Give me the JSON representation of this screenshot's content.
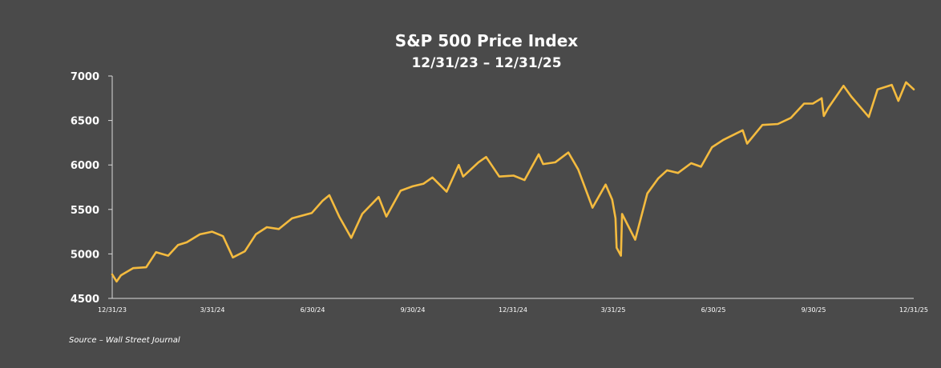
{
  "chart_data": {
    "type": "line",
    "title": "S&P 500 Price Index",
    "subtitle": "12/31/23 – 12/31/25",
    "xlabel": "",
    "ylabel": "",
    "ylim": [
      4500,
      7000
    ],
    "yticks": [
      "7000",
      "6500",
      "6000",
      "5500",
      "5000",
      "4500"
    ],
    "xticks": [
      "12/31/23",
      "3/31/24",
      "6/30/24",
      "9/30/24",
      "12/31/24",
      "3/31/25",
      "6/30/25",
      "9/30/25",
      "12/31/25"
    ],
    "xrange": [
      "2023-12-31",
      "2025-12-31"
    ],
    "line_color": "#f4bb3f",
    "grid": false,
    "series": [
      {
        "points": [
          [
            "2023-12-31",
            4770
          ],
          [
            "2024-01-04",
            4690
          ],
          [
            "2024-01-08",
            4760
          ],
          [
            "2024-01-19",
            4840
          ],
          [
            "2024-01-31",
            4850
          ],
          [
            "2024-02-09",
            5020
          ],
          [
            "2024-02-20",
            4980
          ],
          [
            "2024-02-29",
            5100
          ],
          [
            "2024-03-08",
            5130
          ],
          [
            "2024-03-20",
            5220
          ],
          [
            "2024-03-31",
            5250
          ],
          [
            "2024-04-10",
            5200
          ],
          [
            "2024-04-19",
            4960
          ],
          [
            "2024-04-30",
            5030
          ],
          [
            "2024-05-10",
            5220
          ],
          [
            "2024-05-20",
            5300
          ],
          [
            "2024-05-31",
            5280
          ],
          [
            "2024-06-12",
            5400
          ],
          [
            "2024-06-30",
            5460
          ],
          [
            "2024-07-10",
            5600
          ],
          [
            "2024-07-16",
            5660
          ],
          [
            "2024-07-25",
            5420
          ],
          [
            "2024-08-05",
            5180
          ],
          [
            "2024-08-15",
            5450
          ],
          [
            "2024-08-30",
            5640
          ],
          [
            "2024-09-06",
            5420
          ],
          [
            "2024-09-19",
            5710
          ],
          [
            "2024-09-30",
            5760
          ],
          [
            "2024-10-10",
            5790
          ],
          [
            "2024-10-18",
            5860
          ],
          [
            "2024-10-31",
            5700
          ],
          [
            "2024-11-11",
            6000
          ],
          [
            "2024-11-15",
            5870
          ],
          [
            "2024-11-29",
            6030
          ],
          [
            "2024-12-06",
            6090
          ],
          [
            "2024-12-18",
            5870
          ],
          [
            "2024-12-31",
            5880
          ],
          [
            "2025-01-10",
            5830
          ],
          [
            "2025-01-23",
            6120
          ],
          [
            "2025-01-27",
            6010
          ],
          [
            "2025-02-07",
            6030
          ],
          [
            "2025-02-19",
            6140
          ],
          [
            "2025-02-28",
            5950
          ],
          [
            "2025-03-10",
            5620
          ],
          [
            "2025-03-13",
            5520
          ],
          [
            "2025-03-25",
            5780
          ],
          [
            "2025-03-31",
            5610
          ],
          [
            "2025-04-03",
            5400
          ],
          [
            "2025-04-04",
            5070
          ],
          [
            "2025-04-08",
            4980
          ],
          [
            "2025-04-09",
            5450
          ],
          [
            "2025-04-21",
            5160
          ],
          [
            "2025-05-02",
            5680
          ],
          [
            "2025-05-12",
            5850
          ],
          [
            "2025-05-20",
            5940
          ],
          [
            "2025-05-30",
            5910
          ],
          [
            "2025-06-11",
            6020
          ],
          [
            "2025-06-20",
            5980
          ],
          [
            "2025-06-30",
            6200
          ],
          [
            "2025-07-10",
            6280
          ],
          [
            "2025-07-28",
            6390
          ],
          [
            "2025-08-01",
            6240
          ],
          [
            "2025-08-15",
            6450
          ],
          [
            "2025-08-29",
            6460
          ],
          [
            "2025-09-10",
            6530
          ],
          [
            "2025-09-22",
            6690
          ],
          [
            "2025-09-30",
            6690
          ],
          [
            "2025-10-08",
            6750
          ],
          [
            "2025-10-10",
            6550
          ],
          [
            "2025-10-14",
            6640
          ],
          [
            "2025-10-28",
            6890
          ],
          [
            "2025-11-04",
            6770
          ],
          [
            "2025-11-20",
            6540
          ],
          [
            "2025-11-28",
            6850
          ],
          [
            "2025-12-11",
            6900
          ],
          [
            "2025-12-17",
            6720
          ],
          [
            "2025-12-24",
            6930
          ],
          [
            "2025-12-31",
            6850
          ]
        ]
      }
    ]
  },
  "footer": {
    "source": "Source – Wall Street Journal"
  }
}
